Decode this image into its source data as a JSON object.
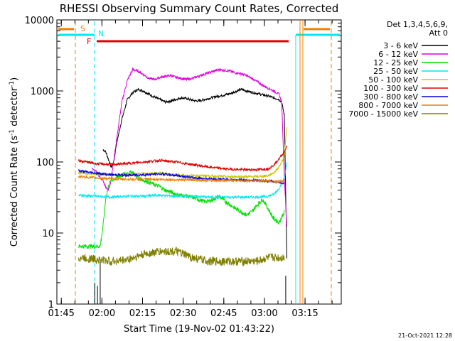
{
  "chart_data": {
    "type": "line",
    "title": "RHESSI Observing Summary Count Rates, Corrected",
    "xlabel": "Start Time (19-Nov-02 01:43:22)",
    "ylabel_main": "Corrected Count Rate (s",
    "ylabel_exp1": "-1",
    "ylabel_mid": " detector",
    "ylabel_exp2": "-1",
    "ylabel_end": ")",
    "footer_date": "21-Oct-2021 12:28",
    "yscale": "log",
    "ylim": [
      1,
      10000
    ],
    "xlim_minutes": [
      0,
      105
    ],
    "x_ticks": [
      "01:45",
      "02:00",
      "02:15",
      "02:30",
      "02:45",
      "03:00",
      "03:15"
    ],
    "y_ticks": [
      "1",
      "10",
      "100",
      "1000",
      "10000"
    ],
    "legend": {
      "header_line1": "Det 1,3,4,5,6,9,",
      "header_line2": "Att 0",
      "entries": [
        {
          "label": "3 - 6 keV",
          "color": "#000000"
        },
        {
          "label": "6 - 12 keV",
          "color": "#e000e0"
        },
        {
          "label": "12 - 25 keV",
          "color": "#00e000"
        },
        {
          "label": "25 - 50 keV",
          "color": "#00e8f0"
        },
        {
          "label": "50 - 100 keV",
          "color": "#c8c800"
        },
        {
          "label": "100 - 300 keV",
          "color": "#e00000"
        },
        {
          "label": "300 - 800 keV",
          "color": "#0000e0"
        },
        {
          "label": "800 - 7000 keV",
          "color": "#f08000"
        },
        {
          "label": "7000 - 15000 keV",
          "color": "#808000"
        }
      ]
    },
    "flags": {
      "S": "S",
      "N": "N",
      "F": "F"
    },
    "series": [
      {
        "name": "3 - 6 keV",
        "color": "#000000",
        "x": [
          17,
          18,
          19,
          20,
          21,
          22,
          24,
          26,
          28,
          30,
          32,
          34,
          36,
          38,
          40,
          42,
          44,
          46,
          48,
          50,
          52,
          54,
          56,
          58,
          60,
          62,
          64,
          66,
          68,
          70,
          72,
          74,
          76,
          78,
          80,
          82,
          83,
          84,
          85
        ],
        "y": [
          150,
          140,
          110,
          85,
          100,
          180,
          400,
          750,
          950,
          1050,
          1000,
          900,
          820,
          760,
          700,
          720,
          760,
          800,
          780,
          740,
          720,
          750,
          780,
          820,
          850,
          880,
          920,
          980,
          1050,
          1000,
          960,
          920,
          880,
          850,
          800,
          760,
          700,
          450,
          3
        ]
      },
      {
        "name": "6 - 12 keV",
        "color": "#e000e0",
        "x": [
          13,
          15,
          16,
          17,
          18,
          19,
          20,
          22,
          24,
          26,
          28,
          30,
          32,
          34,
          36,
          38,
          40,
          42,
          44,
          46,
          48,
          50,
          52,
          54,
          56,
          58,
          60,
          62,
          64,
          66,
          68,
          70,
          72,
          74,
          76,
          78,
          80,
          82,
          83,
          84,
          85
        ],
        "y": [
          80,
          70,
          60,
          55,
          45,
          40,
          55,
          200,
          700,
          1400,
          2000,
          1900,
          1700,
          1500,
          1450,
          1550,
          1600,
          1650,
          1550,
          1500,
          1450,
          1500,
          1600,
          1700,
          1800,
          1900,
          2000,
          1950,
          1900,
          1800,
          1750,
          1650,
          1500,
          1350,
          1200,
          1100,
          1000,
          900,
          700,
          60,
          10
        ]
      },
      {
        "name": "12 - 25 keV",
        "color": "#00e000",
        "x": [
          8,
          10,
          12,
          14,
          16,
          17,
          18,
          19,
          20,
          22,
          24,
          26,
          28,
          30,
          32,
          34,
          36,
          38,
          40,
          42,
          44,
          46,
          48,
          50,
          52,
          54,
          56,
          58,
          60,
          62,
          64,
          66,
          68,
          70,
          72,
          74,
          76,
          78,
          80,
          82,
          84
        ],
        "y": [
          6.5,
          6.5,
          6.5,
          6.5,
          6.5,
          12,
          30,
          45,
          55,
          60,
          65,
          70,
          72,
          60,
          55,
          52,
          48,
          45,
          40,
          38,
          35,
          34,
          33,
          32,
          30,
          28,
          28,
          30,
          33,
          28,
          25,
          22,
          20,
          18,
          20,
          25,
          30,
          22,
          16,
          14,
          20
        ]
      },
      {
        "name": "25 - 50 keV",
        "color": "#00e8f0",
        "x": [
          8,
          14,
          20,
          26,
          32,
          38,
          44,
          50,
          56,
          62,
          68,
          74,
          78,
          80,
          82,
          84,
          85
        ],
        "y": [
          34,
          33,
          32,
          33,
          33,
          34,
          33,
          33,
          32,
          32,
          32,
          32,
          33,
          35,
          42,
          60,
          100
        ]
      },
      {
        "name": "50 - 100 keV",
        "color": "#c8c800",
        "x": [
          8,
          14,
          20,
          26,
          32,
          38,
          44,
          50,
          56,
          62,
          68,
          74,
          78,
          80,
          82,
          84,
          85
        ],
        "y": [
          70,
          68,
          66,
          66,
          68,
          70,
          66,
          64,
          64,
          62,
          62,
          62,
          64,
          70,
          85,
          120,
          350
        ]
      },
      {
        "name": "100 - 300 keV",
        "color": "#e00000",
        "x": [
          8,
          14,
          20,
          26,
          32,
          38,
          44,
          50,
          56,
          62,
          68,
          74,
          78,
          80,
          82,
          84,
          85
        ],
        "y": [
          105,
          95,
          92,
          95,
          100,
          105,
          100,
          92,
          85,
          80,
          78,
          78,
          80,
          90,
          110,
          140,
          170
        ]
      },
      {
        "name": "300 - 800 keV",
        "color": "#0000e0",
        "x": [
          8,
          14,
          20,
          26,
          32,
          38,
          44,
          50,
          56,
          62,
          68,
          74,
          78,
          80,
          82,
          84
        ],
        "y": [
          75,
          70,
          66,
          65,
          66,
          68,
          65,
          60,
          58,
          57,
          56,
          55,
          54,
          53,
          52,
          50
        ]
      },
      {
        "name": "800 - 7000 keV",
        "color": "#f08000",
        "x": [
          8,
          14,
          20,
          26,
          32,
          38,
          44,
          50,
          56,
          62,
          68,
          74,
          78,
          80,
          82,
          84
        ],
        "y": [
          62,
          60,
          58,
          57,
          57,
          57,
          56,
          56,
          55,
          55,
          55,
          54,
          54,
          53,
          53,
          55
        ]
      },
      {
        "name": "7000 - 15000 keV",
        "color": "#808000",
        "x": [
          8,
          14,
          20,
          26,
          32,
          38,
          44,
          50,
          56,
          62,
          68,
          74,
          78,
          80,
          82,
          84
        ],
        "y": [
          4.5,
          4.3,
          4.0,
          4.2,
          5.0,
          5.5,
          5.5,
          4.5,
          4.0,
          4.0,
          4.0,
          4.0,
          4.5,
          4.5,
          4.5,
          4.5
        ]
      }
    ]
  }
}
